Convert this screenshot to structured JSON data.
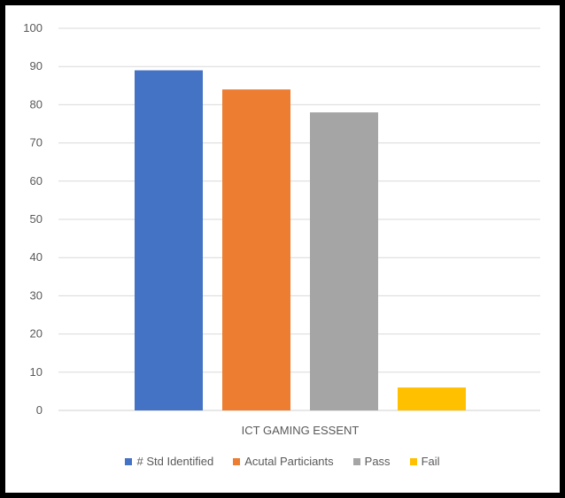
{
  "chart_data": {
    "type": "bar",
    "categories": [
      "ICT  GAMING ESSENT"
    ],
    "series": [
      {
        "name": "# Std Identified",
        "values": [
          89
        ],
        "color": "#4472C4"
      },
      {
        "name": "Acutal Particiants",
        "values": [
          84
        ],
        "color": "#ED7D31"
      },
      {
        "name": "Pass",
        "values": [
          78
        ],
        "color": "#A5A5A5"
      },
      {
        "name": "Fail",
        "values": [
          6
        ],
        "color": "#FFC000"
      }
    ],
    "ylim": [
      0,
      100
    ],
    "yticks": [
      0,
      10,
      20,
      30,
      40,
      50,
      60,
      70,
      80,
      90,
      100
    ],
    "grid": true,
    "legend_position": "bottom"
  }
}
